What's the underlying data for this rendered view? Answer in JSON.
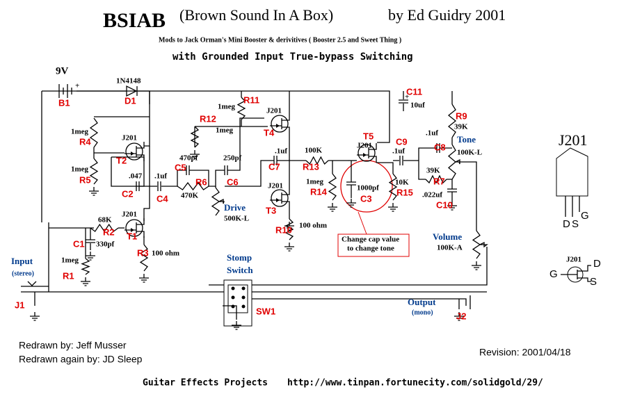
{
  "title": {
    "name": "BSIAB",
    "subtitle": "(Brown Sound In A Box)",
    "byline": "by Ed Guidry  2001"
  },
  "mods_note": "Mods to Jack Orman's Mini Booster & derivitives ( Booster 2.5 and Sweet Thing )",
  "switching_note": "with Grounded Input True-bypass Switching",
  "components": [
    {
      "ref": "B1",
      "value": "9V"
    },
    {
      "ref": "D1",
      "value": "1N4148"
    },
    {
      "ref": "R11",
      "value": "1meg"
    },
    {
      "ref": "R12",
      "value": "1meg"
    },
    {
      "ref": "R4",
      "value": "1meg"
    },
    {
      "ref": "R5",
      "value": "1meg"
    },
    {
      "ref": "T2",
      "value": "J201"
    },
    {
      "ref": "T4",
      "value": "J201"
    },
    {
      "ref": "C2",
      "value": ".047"
    },
    {
      "ref": "C4",
      "value": ".1uf"
    },
    {
      "ref": "C5",
      "value": "470pf"
    },
    {
      "ref": "R6",
      "value": "470K"
    },
    {
      "ref": "C6",
      "value": "250pf"
    },
    {
      "ref": "C7",
      "value": ".1uf"
    },
    {
      "ref": "R13",
      "value": "100K"
    },
    {
      "ref": "T3",
      "value": "J201"
    },
    {
      "ref": "R10",
      "value": "100 ohm"
    },
    {
      "ref": "Drive",
      "value": "500K-L"
    },
    {
      "ref": "R14",
      "value": "1meg"
    },
    {
      "ref": "T5",
      "value": "J201"
    },
    {
      "ref": "C3",
      "value": "1000pf"
    },
    {
      "ref": "R15",
      "value": "10K"
    },
    {
      "ref": "C9",
      "value": ".1uf"
    },
    {
      "ref": "C11",
      "value": "10uf"
    },
    {
      "ref": "R9",
      "value": "39K"
    },
    {
      "ref": "C8",
      "value": ".1uf"
    },
    {
      "ref": "Tone",
      "value": "100K-L"
    },
    {
      "ref": "R7",
      "value": "39K"
    },
    {
      "ref": "C10",
      "value": ".022uf"
    },
    {
      "ref": "Volume",
      "value": "100K-A"
    },
    {
      "ref": "T1",
      "value": "J201"
    },
    {
      "ref": "R2",
      "value": "68K"
    },
    {
      "ref": "C1",
      "value": "330pf"
    },
    {
      "ref": "R3",
      "value": "100 ohm"
    },
    {
      "ref": "R1",
      "value": "1meg"
    }
  ],
  "jacks": [
    {
      "ref": "J1",
      "name": "Input",
      "note": "(stereo)"
    },
    {
      "ref": "J2",
      "name": "Output",
      "note": "(mono)"
    }
  ],
  "switch": {
    "ref": "SW1",
    "name": [
      "Stomp",
      "Switch"
    ]
  },
  "annotation": [
    "Change cap value",
    "to change tone"
  ],
  "pinout": {
    "title": "J201",
    "legs": [
      "D",
      "S",
      "G"
    ],
    "symbol": {
      "title": "J201",
      "pins": [
        "G",
        "D",
        "S"
      ]
    }
  },
  "credits": [
    "Redrawn by: Jeff Musser",
    "Redrawn again by: JD Sleep"
  ],
  "revision": "Revision: 2001/04/18",
  "footer": {
    "site": "Guitar Effects Projects",
    "url": "http://www.tinpan.fortunecity.com/solidgold/29/"
  }
}
